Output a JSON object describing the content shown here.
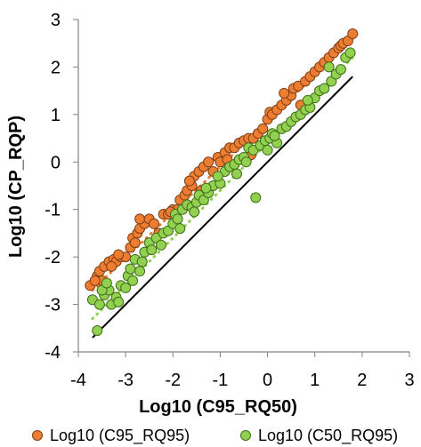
{
  "chart_data": {
    "type": "scatter",
    "xlabel": "Log10 (C95_RQ50)",
    "ylabel": "Log10 (CP_RQP)",
    "xlim": [
      -4,
      3
    ],
    "ylim": [
      -4,
      3
    ],
    "xticks": [
      "-4",
      "-3",
      "-2",
      "-1",
      "0",
      "1",
      "2",
      "3"
    ],
    "yticks": [
      "3",
      "2",
      "1",
      "0",
      "-1",
      "-2",
      "-3",
      "-4"
    ],
    "grid": false,
    "legend": {
      "position": "bottom",
      "entries": [
        "Log10 (C95_RQ95)",
        "Log10 (C50_RQ95)"
      ]
    },
    "reference_line": {
      "type": "identity",
      "color": "#000000",
      "x": [
        -3.7,
        1.8
      ],
      "y": [
        -3.7,
        1.8
      ]
    },
    "series": [
      {
        "name": "Log10 (C95_RQ95)",
        "color": "#ED7D31",
        "edgecolor": "#7F3F16",
        "trend_line": {
          "style": "dotted",
          "x": [
            -3.7,
            1.8
          ],
          "y": [
            -2.7,
            2.6
          ]
        },
        "points": [
          [
            -3.75,
            -2.6
          ],
          [
            -3.6,
            -2.4
          ],
          [
            -3.55,
            -2.3
          ],
          [
            -3.45,
            -2.2
          ],
          [
            -3.35,
            -2.1
          ],
          [
            -3.25,
            -2.05
          ],
          [
            -3.2,
            -2.1
          ],
          [
            -3.1,
            -2.0
          ],
          [
            -3.5,
            -2.5
          ],
          [
            -3.3,
            -2.2
          ],
          [
            -3.0,
            -2.0
          ],
          [
            -2.9,
            -1.8
          ],
          [
            -2.85,
            -1.6
          ],
          [
            -2.75,
            -1.5
          ],
          [
            -2.7,
            -1.4
          ],
          [
            -2.6,
            -1.3
          ],
          [
            -2.7,
            -1.2
          ],
          [
            -2.5,
            -1.2
          ],
          [
            -2.8,
            -1.7
          ],
          [
            -2.4,
            -1.3
          ],
          [
            -2.2,
            -1.1
          ],
          [
            -2.1,
            -1.1
          ],
          [
            -2.0,
            -1.0
          ],
          [
            -1.9,
            -1.0
          ],
          [
            -1.85,
            -0.8
          ],
          [
            -1.75,
            -0.7
          ],
          [
            -1.7,
            -0.6
          ],
          [
            -1.6,
            -0.5
          ],
          [
            -1.55,
            -0.3
          ],
          [
            -1.45,
            -0.2
          ],
          [
            -1.35,
            -0.1
          ],
          [
            -1.25,
            0.0
          ],
          [
            -1.15,
            -0.2
          ],
          [
            -1.05,
            0.1
          ],
          [
            -1.0,
            0.0
          ],
          [
            -0.9,
            0.2
          ],
          [
            -0.8,
            0.3
          ],
          [
            -0.7,
            0.3
          ],
          [
            -0.6,
            0.4
          ],
          [
            -0.5,
            0.45
          ],
          [
            -0.4,
            0.5
          ],
          [
            -0.3,
            0.5
          ],
          [
            -0.2,
            0.6
          ],
          [
            -0.1,
            0.7
          ],
          [
            0.0,
            0.9
          ],
          [
            0.05,
            1.05
          ],
          [
            0.1,
            1.0
          ],
          [
            0.2,
            1.1
          ],
          [
            0.3,
            1.2
          ],
          [
            0.4,
            1.3
          ],
          [
            0.5,
            1.4
          ],
          [
            0.55,
            1.55
          ],
          [
            0.65,
            1.6
          ],
          [
            0.8,
            1.7
          ],
          [
            0.9,
            1.8
          ],
          [
            1.0,
            1.9
          ],
          [
            1.1,
            2.0
          ],
          [
            1.2,
            2.1
          ],
          [
            1.3,
            2.2
          ],
          [
            1.4,
            2.3
          ],
          [
            1.5,
            2.4
          ],
          [
            1.55,
            2.45
          ],
          [
            1.6,
            2.5
          ],
          [
            1.7,
            2.55
          ],
          [
            1.8,
            2.7
          ],
          [
            -2.3,
            -1.5
          ],
          [
            -1.4,
            -0.6
          ],
          [
            -0.35,
            0.15
          ],
          [
            0.7,
            1.2
          ],
          [
            -3.65,
            -2.5
          ],
          [
            -3.15,
            -1.95
          ],
          [
            -2.05,
            -1.05
          ],
          [
            -1.65,
            -0.4
          ],
          [
            -0.85,
            0.05
          ],
          [
            0.35,
            1.45
          ]
        ]
      },
      {
        "name": "Log10 (C50_RQ95)",
        "color": "#92D050",
        "edgecolor": "#3F6F1A",
        "trend_line": {
          "style": "dotted",
          "x": [
            -3.7,
            1.8
          ],
          "y": [
            -3.3,
            2.2
          ]
        },
        "points": [
          [
            -3.6,
            -3.55
          ],
          [
            -3.7,
            -2.9
          ],
          [
            -3.55,
            -3.0
          ],
          [
            -3.45,
            -2.8
          ],
          [
            -3.35,
            -2.7
          ],
          [
            -3.3,
            -3.0
          ],
          [
            -3.2,
            -2.85
          ],
          [
            -3.1,
            -2.6
          ],
          [
            -3.0,
            -2.65
          ],
          [
            -2.95,
            -2.4
          ],
          [
            -3.5,
            -2.7
          ],
          [
            -2.9,
            -2.25
          ],
          [
            -2.8,
            -2.05
          ],
          [
            -2.7,
            -2.3
          ],
          [
            -2.6,
            -1.9
          ],
          [
            -2.5,
            -1.7
          ],
          [
            -2.45,
            -1.85
          ],
          [
            -2.35,
            -1.6
          ],
          [
            -2.2,
            -1.5
          ],
          [
            -2.1,
            -1.45
          ],
          [
            -2.0,
            -1.3
          ],
          [
            -1.95,
            -1.1
          ],
          [
            -1.9,
            -1.2
          ],
          [
            -1.8,
            -1.0
          ],
          [
            -1.7,
            -0.9
          ],
          [
            -1.6,
            -0.95
          ],
          [
            -1.5,
            -0.85
          ],
          [
            -1.45,
            -0.7
          ],
          [
            -1.35,
            -0.8
          ],
          [
            -1.25,
            -0.65
          ],
          [
            -1.15,
            -0.5
          ],
          [
            -1.0,
            -0.45
          ],
          [
            -0.9,
            -0.2
          ],
          [
            -0.8,
            -0.1
          ],
          [
            -0.7,
            -0.05
          ],
          [
            -0.6,
            0.05
          ],
          [
            -0.5,
            0.1
          ],
          [
            -0.4,
            0.3
          ],
          [
            -0.3,
            0.25
          ],
          [
            -0.25,
            -0.75
          ],
          [
            -0.15,
            0.35
          ],
          [
            -0.05,
            0.45
          ],
          [
            0.05,
            0.5
          ],
          [
            0.1,
            0.6
          ],
          [
            0.2,
            0.4
          ],
          [
            0.3,
            0.7
          ],
          [
            0.4,
            0.75
          ],
          [
            0.5,
            0.85
          ],
          [
            0.6,
            0.95
          ],
          [
            0.7,
            1.0
          ],
          [
            0.8,
            1.1
          ],
          [
            0.9,
            1.15
          ],
          [
            1.0,
            1.35
          ],
          [
            1.1,
            1.5
          ],
          [
            1.2,
            1.55
          ],
          [
            1.35,
            1.7
          ],
          [
            1.45,
            1.85
          ],
          [
            1.55,
            1.95
          ],
          [
            1.65,
            2.2
          ],
          [
            1.75,
            2.3
          ],
          [
            -3.4,
            -2.55
          ],
          [
            -2.65,
            -2.1
          ],
          [
            -1.85,
            -1.4
          ],
          [
            -1.05,
            -0.3
          ],
          [
            -0.45,
            0.0
          ],
          [
            0.15,
            0.55
          ],
          [
            -2.25,
            -1.75
          ],
          [
            -1.3,
            -0.55
          ],
          [
            0.0,
            0.25
          ],
          [
            -3.15,
            -2.95
          ],
          [
            0.85,
            1.3
          ],
          [
            1.3,
            2.0
          ],
          [
            -0.65,
            -0.25
          ],
          [
            -1.55,
            -1.05
          ],
          [
            -2.85,
            -2.5
          ]
        ]
      }
    ]
  }
}
